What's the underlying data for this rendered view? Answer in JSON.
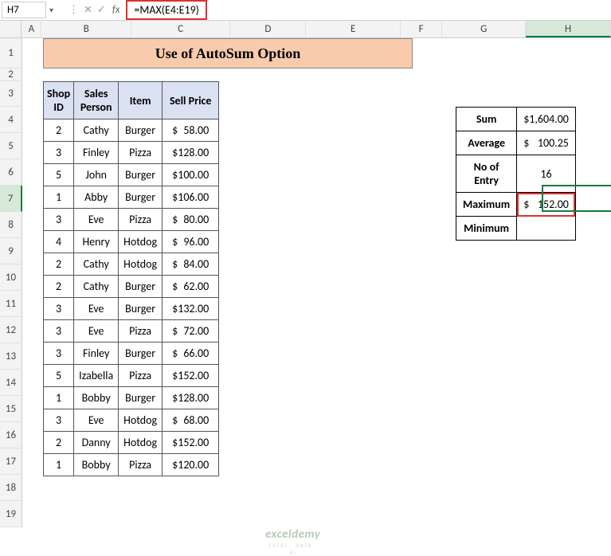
{
  "cell_ref": "H7",
  "formula": "=MAX(E4:E19)",
  "columns": [
    "A",
    "B",
    "C",
    "D",
    "E",
    "F",
    "G",
    "H"
  ],
  "rows_count": 19,
  "selected_row": 7,
  "selected_col_index": 7,
  "title": "Use of AutoSum Option",
  "headers": [
    "Shop ID",
    "Sales Person",
    "Item",
    "Sell Price"
  ],
  "data": [
    {
      "id": "2",
      "person": "Cathy",
      "item": "Burger",
      "price": "58.00"
    },
    {
      "id": "3",
      "person": "Finley",
      "item": "Pizza",
      "price": "128.00"
    },
    {
      "id": "5",
      "person": "John",
      "item": "Burger",
      "price": "100.00"
    },
    {
      "id": "1",
      "person": "Abby",
      "item": "Burger",
      "price": "106.00"
    },
    {
      "id": "3",
      "person": "Eve",
      "item": "Pizza",
      "price": "80.00"
    },
    {
      "id": "4",
      "person": "Henry",
      "item": "Hotdog",
      "price": "96.00"
    },
    {
      "id": "2",
      "person": "Cathy",
      "item": "Hotdog",
      "price": "84.00"
    },
    {
      "id": "2",
      "person": "Cathy",
      "item": "Burger",
      "price": "62.00"
    },
    {
      "id": "3",
      "person": "Eve",
      "item": "Burger",
      "price": "132.00"
    },
    {
      "id": "3",
      "person": "Eve",
      "item": "Pizza",
      "price": "72.00"
    },
    {
      "id": "3",
      "person": "Finley",
      "item": "Burger",
      "price": "66.00"
    },
    {
      "id": "5",
      "person": "Izabella",
      "item": "Pizza",
      "price": "152.00"
    },
    {
      "id": "1",
      "person": "Bobby",
      "item": "Burger",
      "price": "128.00"
    },
    {
      "id": "3",
      "person": "Eve",
      "item": "Hotdog",
      "price": "68.00"
    },
    {
      "id": "2",
      "person": "Danny",
      "item": "Hotdog",
      "price": "152.00"
    },
    {
      "id": "1",
      "person": "Bobby",
      "item": "Pizza",
      "price": "120.00"
    }
  ],
  "summary": [
    {
      "label": "Sum",
      "value": "1,604.00",
      "currency": true,
      "highlight": false
    },
    {
      "label": "Average",
      "value": "100.25",
      "currency": true,
      "highlight": false
    },
    {
      "label": "No of Entry",
      "value": "16",
      "currency": false,
      "highlight": false
    },
    {
      "label": "Maximum",
      "value": "152.00",
      "currency": true,
      "highlight": true
    },
    {
      "label": "Minimum",
      "value": "",
      "currency": false,
      "highlight": false
    }
  ],
  "watermark": {
    "big": "exceldemy",
    "small": "EXCEL · DATA · BI"
  },
  "colors": {
    "title_bg": "#f8cbad",
    "header_bg": "#d9e1f2",
    "highlight_border": "#e03030",
    "select_green": "#107c41"
  }
}
